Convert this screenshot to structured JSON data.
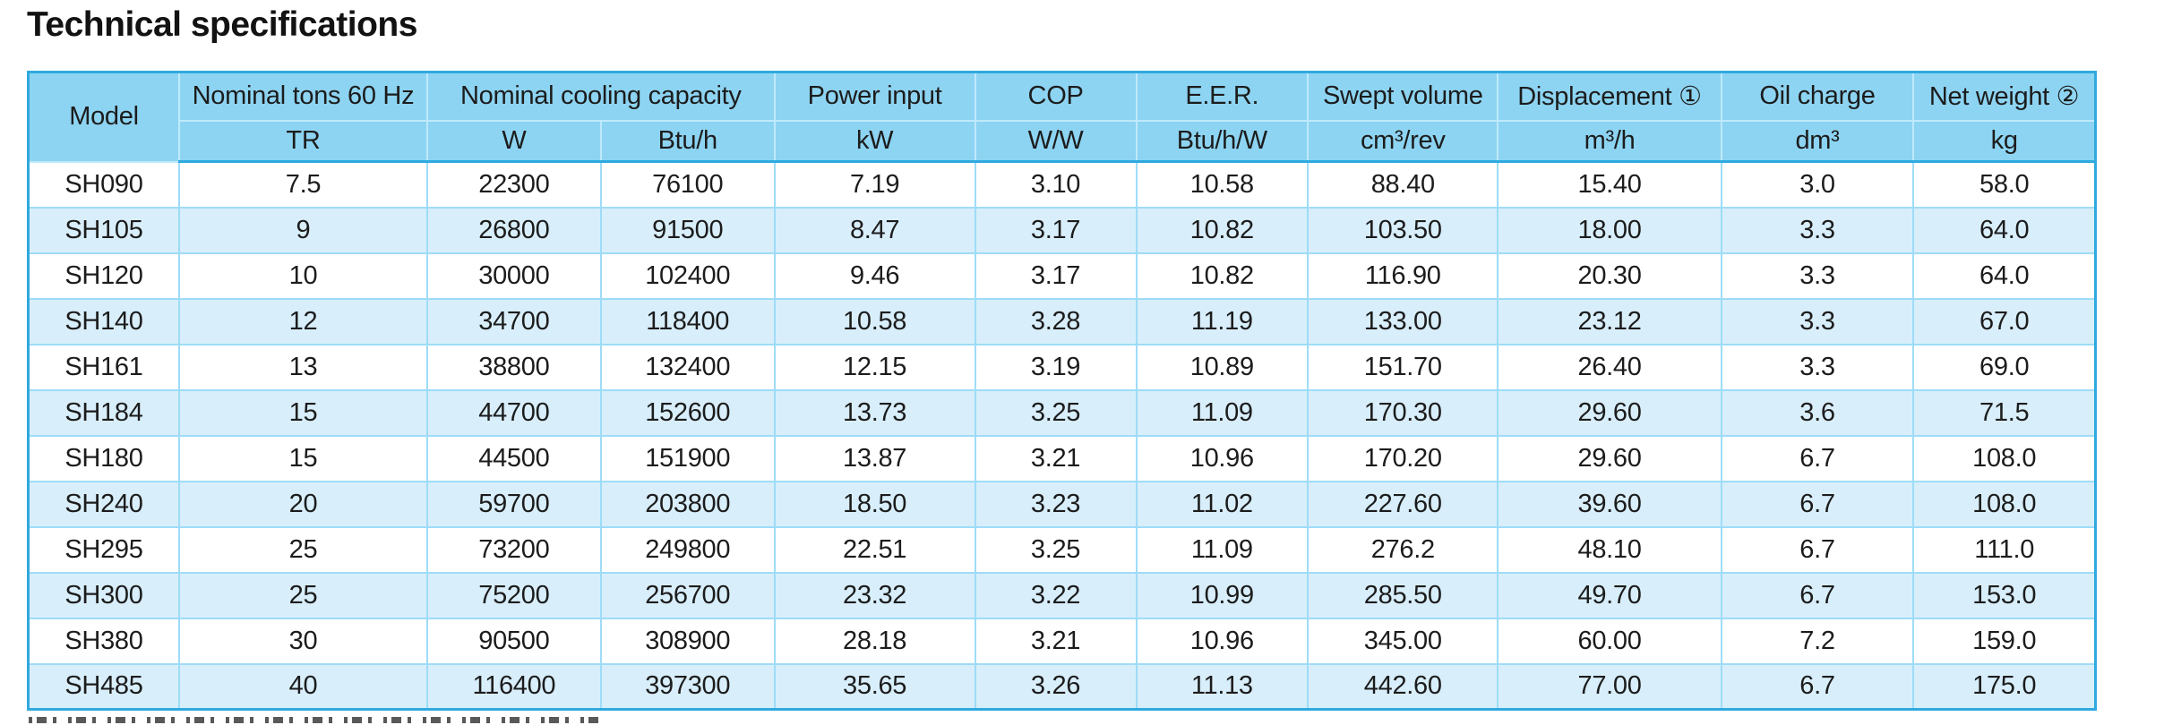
{
  "page": {
    "title": "Technical specifications"
  },
  "colors": {
    "header_bg": "#8dd4f2",
    "row_alt_bg": "#d8eefb",
    "grid_line": "#9edcf8",
    "outer_border": "#2fa9de",
    "text": "#1c1c1c"
  },
  "table": {
    "groups": [
      {
        "label": "Model"
      },
      {
        "label": "Nominal tons 60 Hz"
      },
      {
        "label": "Nominal cooling capacity"
      },
      {
        "label": "Power input"
      },
      {
        "label": "COP"
      },
      {
        "label": "E.E.R."
      },
      {
        "label": "Swept volume"
      },
      {
        "label": "Displacement ①"
      },
      {
        "label": "Oil charge"
      },
      {
        "label": "Net weight ②"
      }
    ],
    "units": [
      "TR",
      "W",
      "Btu/h",
      "kW",
      "W/W",
      "Btu/h/W",
      "cm³/rev",
      "m³/h",
      "dm³",
      "kg"
    ],
    "rows": [
      [
        "SH090",
        "7.5",
        "22300",
        "76100",
        "7.19",
        "3.10",
        "10.58",
        "88.40",
        "15.40",
        "3.0",
        "58.0"
      ],
      [
        "SH105",
        "9",
        "26800",
        "91500",
        "8.47",
        "3.17",
        "10.82",
        "103.50",
        "18.00",
        "3.3",
        "64.0"
      ],
      [
        "SH120",
        "10",
        "30000",
        "102400",
        "9.46",
        "3.17",
        "10.82",
        "116.90",
        "20.30",
        "3.3",
        "64.0"
      ],
      [
        "SH140",
        "12",
        "34700",
        "118400",
        "10.58",
        "3.28",
        "11.19",
        "133.00",
        "23.12",
        "3.3",
        "67.0"
      ],
      [
        "SH161",
        "13",
        "38800",
        "132400",
        "12.15",
        "3.19",
        "10.89",
        "151.70",
        "26.40",
        "3.3",
        "69.0"
      ],
      [
        "SH184",
        "15",
        "44700",
        "152600",
        "13.73",
        "3.25",
        "11.09",
        "170.30",
        "29.60",
        "3.6",
        "71.5"
      ],
      [
        "SH180",
        "15",
        "44500",
        "151900",
        "13.87",
        "3.21",
        "10.96",
        "170.20",
        "29.60",
        "6.7",
        "108.0"
      ],
      [
        "SH240",
        "20",
        "59700",
        "203800",
        "18.50",
        "3.23",
        "11.02",
        "227.60",
        "39.60",
        "6.7",
        "108.0"
      ],
      [
        "SH295",
        "25",
        "73200",
        "249800",
        "22.51",
        "3.25",
        "11.09",
        "276.2",
        "48.10",
        "6.7",
        "111.0"
      ],
      [
        "SH300",
        "25",
        "75200",
        "256700",
        "23.32",
        "3.22",
        "10.99",
        "285.50",
        "49.70",
        "6.7",
        "153.0"
      ],
      [
        "SH380",
        "30",
        "90500",
        "308900",
        "28.18",
        "3.21",
        "10.96",
        "345.00",
        "60.00",
        "7.2",
        "159.0"
      ],
      [
        "SH485",
        "40",
        "116400",
        "397300",
        "35.65",
        "3.26",
        "11.13",
        "442.60",
        "77.00",
        "6.7",
        "175.0"
      ]
    ]
  }
}
